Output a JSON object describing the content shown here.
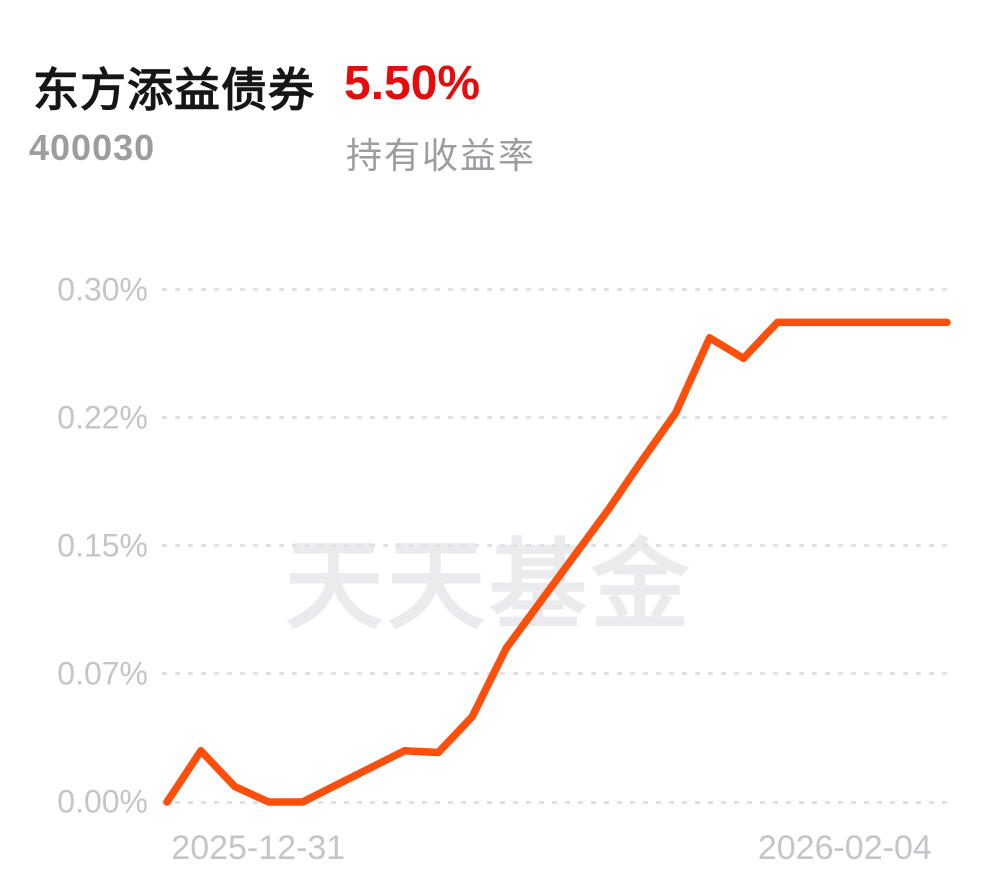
{
  "header": {
    "fund_name": "东方添益债券",
    "return_value": "5.50%",
    "fund_code": "400030",
    "return_label": "持有收益率"
  },
  "colors": {
    "return_value_red": "#e60c0c",
    "line_orange": "#fc4f0c",
    "title_text": "#161616",
    "secondary_text": "#9c9ca1",
    "axis_label_gray": "#c5c5c9",
    "gridline_gray": "#e1e1e5",
    "watermark_gray": "#ebebee",
    "background": "#ffffff"
  },
  "chart_data": {
    "type": "line",
    "unit": "%",
    "grid": "horizontal-dashed",
    "legend": "none",
    "watermark": "天天基金",
    "ylim": [
      0,
      0.3
    ],
    "y_ticks": [
      {
        "value": 0.3,
        "label": "0.30%"
      },
      {
        "value": 0.225,
        "label": "0.22%"
      },
      {
        "value": 0.15,
        "label": "0.15%"
      },
      {
        "value": 0.075,
        "label": "0.07%"
      },
      {
        "value": 0.0,
        "label": "0.00%"
      }
    ],
    "x_ticks": [
      {
        "label": "2025-12-31",
        "pos": 0.117
      },
      {
        "label": "2026-02-04",
        "pos": 0.869
      }
    ],
    "series": [
      {
        "name": "持有收益率",
        "color": "#fc4f0c",
        "values": [
          0.0,
          0.03,
          0.009,
          0.0,
          0.0,
          0.01,
          0.02,
          0.03,
          0.029,
          0.05,
          0.09,
          0.117,
          0.144,
          0.171,
          0.2,
          0.228,
          0.272,
          0.26,
          0.281,
          0.281,
          0.281,
          0.281,
          0.281,
          0.281
        ]
      }
    ]
  }
}
